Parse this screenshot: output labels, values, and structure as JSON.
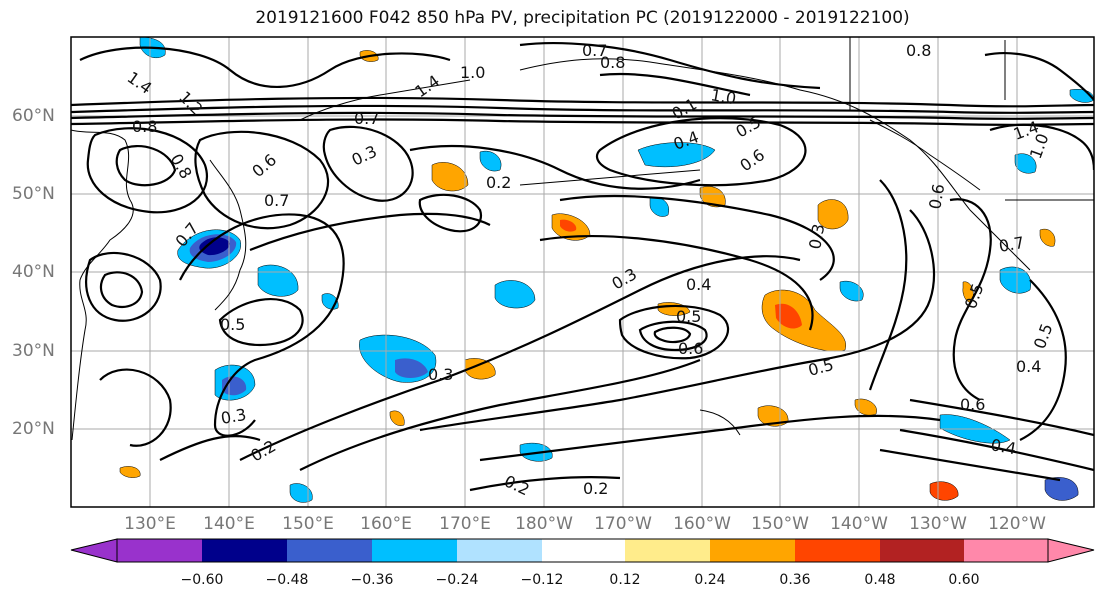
{
  "title": "2019121600 F042 850 hPa PV, precipitation PC (2019122000 - 2019122100)",
  "lat_labels": [
    "60°N",
    "50°N",
    "40°N",
    "30°N",
    "20°N"
  ],
  "lon_labels": [
    "130°E",
    "140°E",
    "150°E",
    "160°E",
    "170°E",
    "180°W",
    "170°W",
    "160°W",
    "150°W",
    "140°W",
    "130°W",
    "120°W"
  ],
  "colorbar": {
    "ticks": [
      "−0.60",
      "−0.48",
      "−0.36",
      "−0.24",
      "−0.12",
      "0.12",
      "0.24",
      "0.36",
      "0.48",
      "0.60"
    ],
    "colors": [
      "#9932cc",
      "#00008b",
      "#3a5fcd",
      "#00bfff",
      "#b0e2ff",
      "#ffffff",
      "#ffec8b",
      "#ffa500",
      "#ff4500",
      "#b22222",
      "#ff88aa"
    ]
  },
  "contour_labels": [
    "1.4",
    "1.2",
    "0.8",
    "0.8",
    "0.7",
    "0.8",
    "1.0",
    "1.4",
    "1.0",
    "0.7",
    "0.7",
    "0.3",
    "0.6",
    "0.7",
    "0.5",
    "0.3",
    "0.4",
    "0.5",
    "0.6",
    "0.2",
    "0.3",
    "0.4",
    "0.5",
    "0.6",
    "0.3",
    "0.5",
    "0.2",
    "0.3",
    "0.2",
    "0.2",
    "0.6",
    "0.4",
    "0.4",
    "0.8",
    "1.0",
    "1.4",
    "0.7",
    "0.5",
    "0.5",
    "0.6",
    "0.1"
  ]
}
